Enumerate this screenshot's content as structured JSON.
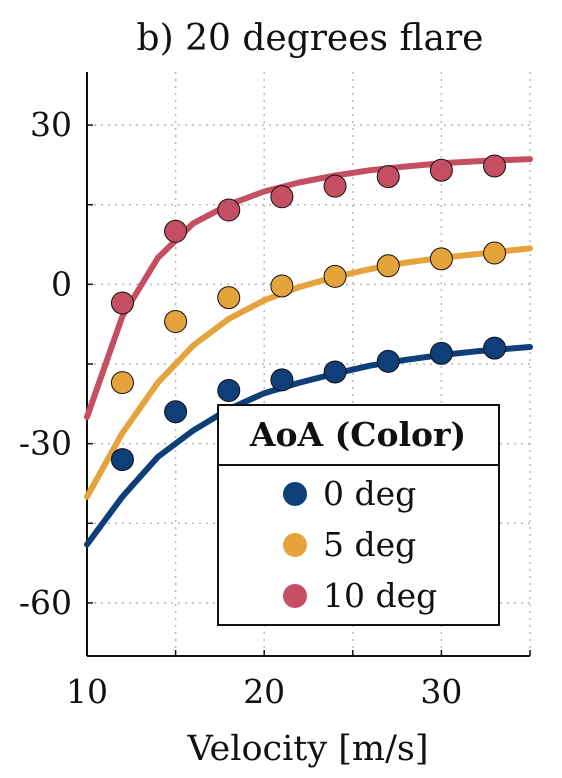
{
  "chart_data": {
    "type": "scatter",
    "title": "b) 20 degrees flare",
    "xlabel": "Velocity [m/s]",
    "ylabel": "",
    "xlim": [
      10,
      35
    ],
    "ylim": [
      -70,
      40
    ],
    "xticks": [
      "10",
      "20",
      "30"
    ],
    "yticks": [
      "30",
      "0",
      "-30",
      "-60"
    ],
    "grid": true,
    "legend": {
      "title": "AoA (Color)",
      "placement": "bottom-right",
      "entries": [
        "0 deg",
        "5 deg",
        "10 deg"
      ]
    },
    "series": [
      {
        "name": "0 deg",
        "color": "#0e3f79",
        "points": {
          "x": [
            12,
            15,
            18,
            21,
            24,
            27,
            30,
            33
          ],
          "y": [
            -33,
            -24,
            -20,
            -18,
            -16.5,
            -14.5,
            -13,
            -12
          ]
        },
        "fit": {
          "x": [
            10,
            12,
            14,
            16,
            18,
            20,
            22,
            24,
            26,
            28,
            30,
            32,
            35
          ],
          "y": [
            -49,
            -40,
            -32.5,
            -27.5,
            -23.5,
            -20.5,
            -18.5,
            -16.8,
            -15.3,
            -14.2,
            -13.3,
            -12.6,
            -11.8
          ]
        }
      },
      {
        "name": "5 deg",
        "color": "#e4a33b",
        "points": {
          "x": [
            12,
            15,
            18,
            21,
            24,
            27,
            30,
            33
          ],
          "y": [
            -18.5,
            -7,
            -2.5,
            -0.3,
            1.5,
            3.5,
            4.8,
            5.9
          ]
        },
        "fit": {
          "x": [
            10,
            12,
            14,
            16,
            18,
            20,
            22,
            24,
            26,
            28,
            30,
            32,
            35
          ],
          "y": [
            -40,
            -28,
            -18.5,
            -11.5,
            -6.5,
            -3,
            -0.5,
            1.4,
            2.9,
            4.1,
            5,
            5.7,
            6.8
          ]
        }
      },
      {
        "name": "10 deg",
        "color": "#c44e62",
        "points": {
          "x": [
            12,
            15,
            18,
            21,
            24,
            27,
            30,
            33
          ],
          "y": [
            -3.5,
            10,
            14,
            16.5,
            18.5,
            20.3,
            21.5,
            22.3
          ]
        },
        "fit": {
          "x": [
            10,
            12,
            14,
            16,
            18,
            20,
            22,
            24,
            26,
            28,
            30,
            32,
            35
          ],
          "y": [
            -25,
            -6,
            5,
            11.5,
            15,
            17.5,
            19.2,
            20.5,
            21.5,
            22.2,
            22.8,
            23.2,
            23.6
          ]
        }
      }
    ]
  }
}
